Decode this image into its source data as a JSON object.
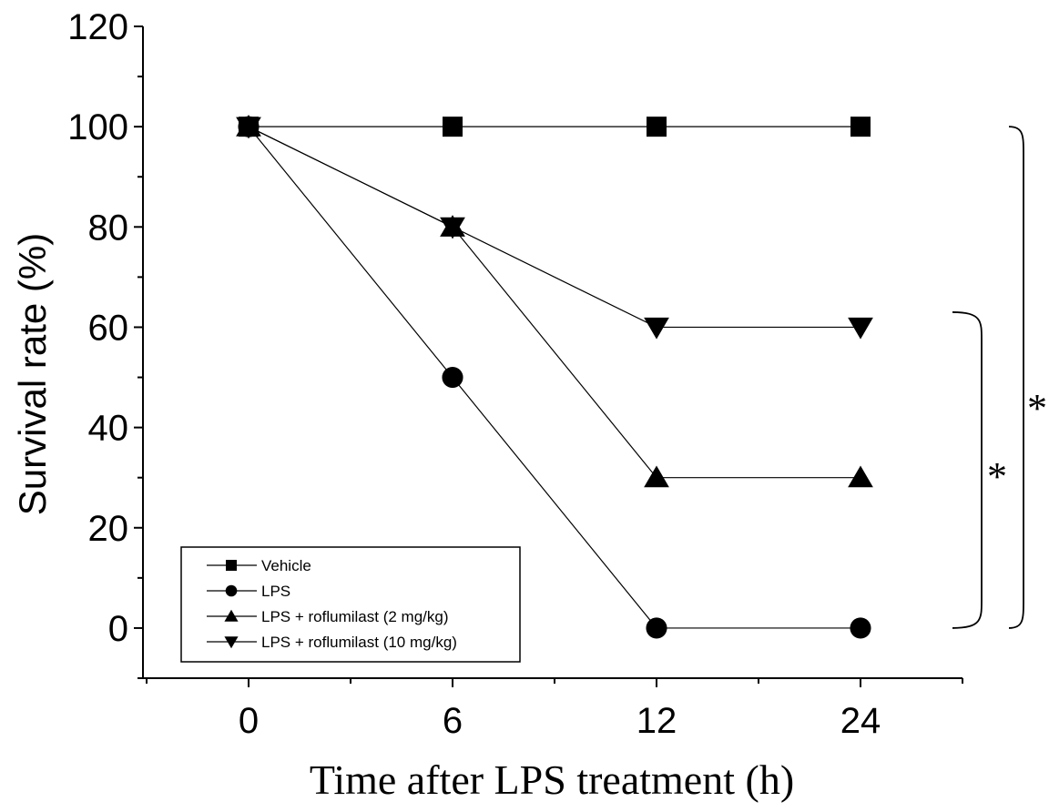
{
  "chart_data": {
    "type": "line",
    "title": "",
    "xlabel": "Time after LPS treatment (h)",
    "ylabel": "Survival rate (%)",
    "categories": [
      "0",
      "6",
      "12",
      "24"
    ],
    "ylim": [
      -10,
      120
    ],
    "yticks": [
      "0",
      "20",
      "40",
      "60",
      "80",
      "100",
      "120"
    ],
    "grid": false,
    "legend_position": "bottom-left",
    "series": [
      {
        "name": "Vehicle",
        "marker": "square",
        "values": [
          100,
          100,
          100,
          100
        ]
      },
      {
        "name": "LPS",
        "marker": "circle",
        "values": [
          100,
          50,
          0,
          0
        ]
      },
      {
        "name": "LPS  + roflumilast (2 mg/kg)",
        "marker": "triangle-up",
        "values": [
          100,
          80,
          30,
          30
        ]
      },
      {
        "name": "LPS  + roflumilast (10 mg/kg)",
        "marker": "triangle-down",
        "values": [
          100,
          80,
          60,
          60
        ]
      }
    ],
    "annotations": [
      {
        "text": "*",
        "comparison": "Vehicle vs LPS"
      },
      {
        "text": "*",
        "comparison": "LPS + roflumilast (10 mg/kg) vs LPS"
      }
    ]
  }
}
